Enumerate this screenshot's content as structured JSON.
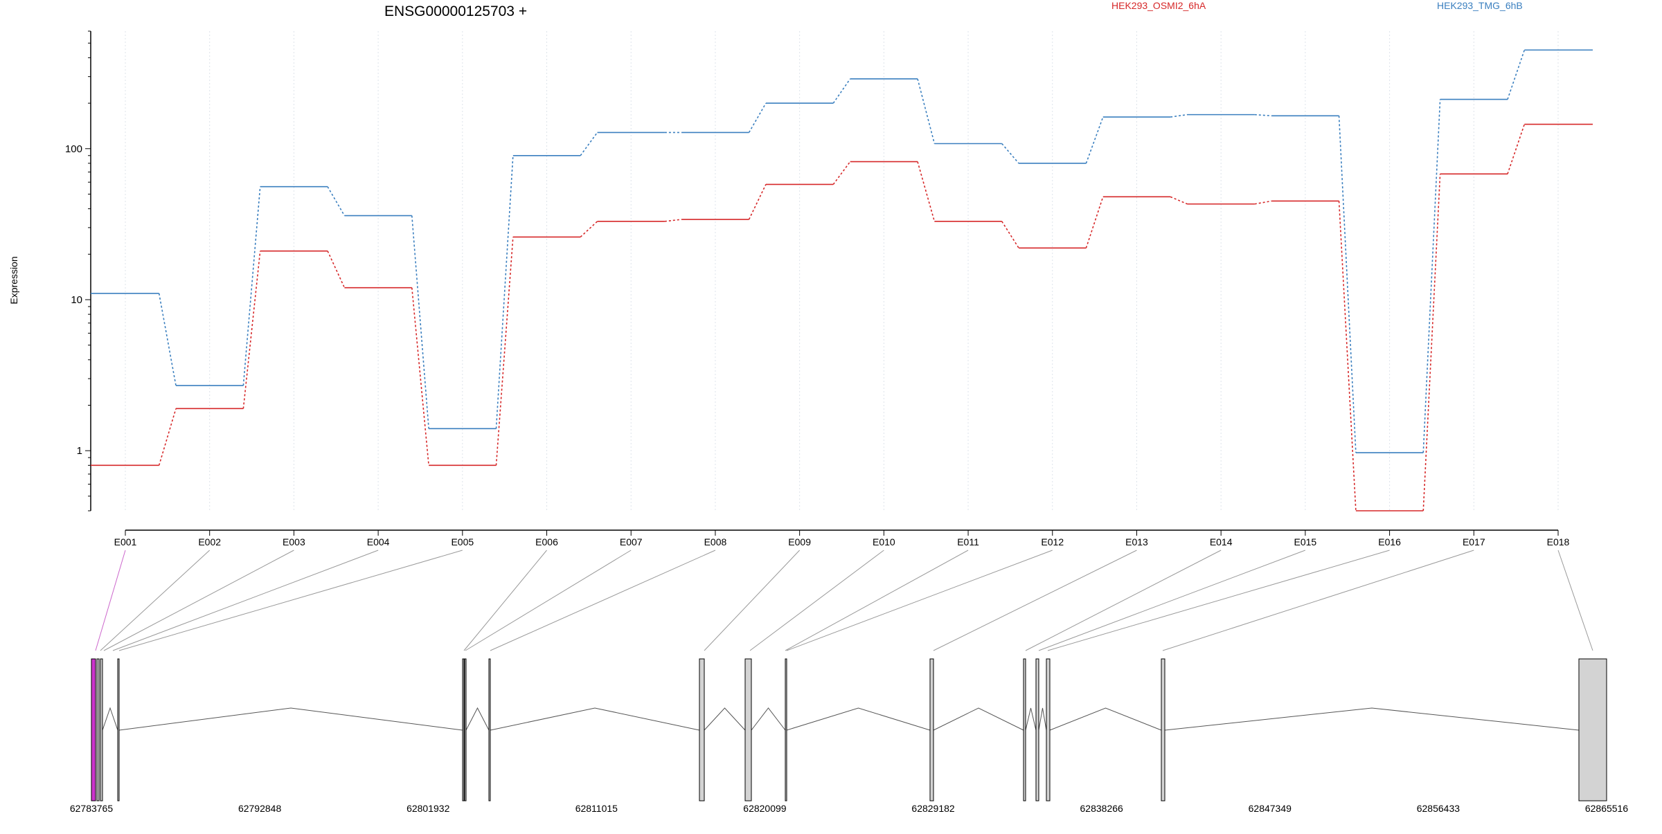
{
  "chart_data": {
    "type": "line",
    "title": "ENSG00000125703 +",
    "ylabel": "Expression",
    "yscale": "log",
    "ylim": [
      0.4,
      600
    ],
    "ytick_labels": [
      "1",
      "10",
      "100"
    ],
    "ytick_values": [
      1,
      10,
      100
    ],
    "categories": [
      "E001",
      "E002",
      "E003",
      "E004",
      "E005",
      "E006",
      "E007",
      "E008",
      "E009",
      "E010",
      "E011",
      "E012",
      "E013",
      "E014",
      "E015",
      "E016",
      "E017",
      "E018"
    ],
    "legend_position": "top",
    "series": [
      {
        "name": "HEK293_OSMI2_6hA",
        "color": "#d62728",
        "values": [
          0.8,
          1.9,
          21,
          12,
          0.8,
          26,
          33,
          34,
          58,
          82,
          33,
          22,
          48,
          43,
          45,
          0.4,
          68,
          145
        ]
      },
      {
        "name": "HEK293_TMG_6hB",
        "color": "#3a7fbf",
        "values": [
          11,
          2.7,
          56,
          36,
          1.4,
          90,
          128,
          128,
          200,
          290,
          108,
          80,
          162,
          168,
          165,
          0.97,
          212,
          450
        ]
      }
    ]
  },
  "gene_model": {
    "genomic_ticks": [
      "62783765",
      "62792848",
      "62801932",
      "62811015",
      "62820099",
      "62829182",
      "62838266",
      "62847349",
      "62856433",
      "62865516"
    ],
    "exon_fill": "#d3d3d3",
    "highlight_fill": "#cc33cc"
  }
}
